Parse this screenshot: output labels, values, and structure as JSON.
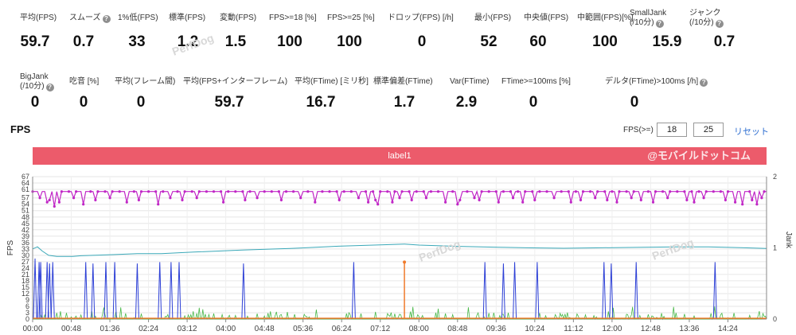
{
  "stats_row1": [
    {
      "label": "平均(FPS)",
      "value": "59.7",
      "help": false
    },
    {
      "label": "スムーズ",
      "value": "0.7",
      "help": true
    },
    {
      "label": "1%低(FPS)",
      "value": "33",
      "help": false
    },
    {
      "label": "標準(FPS)",
      "value": "1.2",
      "help": false
    },
    {
      "label": "変動(FPS)",
      "value": "1.5",
      "help": false
    },
    {
      "label": "FPS>=18 [%]",
      "value": "100",
      "help": false
    },
    {
      "label": "FPS>=25 [%]",
      "value": "100",
      "help": false
    },
    {
      "label": "ドロップ(FPS) [/h]",
      "value": "0",
      "help": false
    },
    {
      "label": "最小(FPS)",
      "value": "52",
      "help": false
    },
    {
      "label": "中央値(FPS)",
      "value": "60",
      "help": false
    },
    {
      "label": "中範囲(FPS)[%]",
      "value": "100",
      "help": false
    },
    {
      "label": "SmallJank",
      "label2": "(/10分)",
      "value": "15.9",
      "help": true
    },
    {
      "label": "ジャンク",
      "label2": "(/10分)",
      "value": "0.7",
      "help": true
    }
  ],
  "stats_row2": [
    {
      "label": "BigJank",
      "label2": "(/10分)",
      "value": "0",
      "help": true
    },
    {
      "label": "吃音 [%]",
      "value": "0",
      "help": false
    },
    {
      "label": "平均(フレーム間)",
      "value": "0",
      "help": false
    },
    {
      "label": "平均(FPS+インターフレーム)",
      "value": "59.7",
      "help": false
    },
    {
      "label": "平均(FTime) [ミリ秒]",
      "value": "16.7",
      "help": false
    },
    {
      "label": "標準偏差(FTime)",
      "value": "1.7",
      "help": false
    },
    {
      "label": "Var(FTime)",
      "value": "2.9",
      "help": false
    },
    {
      "label": "FTime>=100ms [%]",
      "value": "0",
      "help": false
    },
    {
      "label": "デルタ(FTime)>100ms [/h]",
      "value": "0",
      "help": true
    }
  ],
  "help_glyph": "?",
  "fps_section": {
    "title": "FPS",
    "threshold_label": "FPS(>=)",
    "threshold_1": "18",
    "threshold_2": "25",
    "reset_label": "リセット"
  },
  "label_bar": {
    "text": "label1",
    "brand": "@モバイルドットコム"
  },
  "watermark": "PerfDog",
  "chart_data": {
    "type": "line",
    "xlabel": "",
    "ylabel": "FPS",
    "y2label": "Jank",
    "ylim": [
      0,
      67
    ],
    "y2lim": [
      0,
      2
    ],
    "y_ticks": [
      0,
      3,
      6,
      9,
      12,
      15,
      18,
      21,
      24,
      27,
      30,
      33,
      36,
      39,
      42,
      45,
      48,
      51,
      54,
      57,
      61,
      64,
      67
    ],
    "y2_ticks": [
      0,
      1,
      2
    ],
    "x_ticks": [
      "00:00",
      "00:48",
      "01:36",
      "02:24",
      "03:12",
      "04:00",
      "04:48",
      "05:36",
      "06:24",
      "07:12",
      "08:00",
      "08:48",
      "09:36",
      "10:24",
      "11:12",
      "12:00",
      "12:48",
      "13:36",
      "14:24"
    ],
    "x_range_seconds": [
      0,
      912
    ],
    "series": [
      {
        "name": "",
        "color": "#c026c6",
        "kind": "fps",
        "baseline": 60,
        "dips": [
          [
            9,
            57
          ],
          [
            18,
            55
          ],
          [
            21,
            56
          ],
          [
            26,
            53
          ],
          [
            33,
            55
          ],
          [
            50,
            57
          ],
          [
            63,
            54
          ],
          [
            79,
            56
          ],
          [
            95,
            57
          ],
          [
            118,
            55
          ],
          [
            133,
            56
          ],
          [
            155,
            54
          ],
          [
            170,
            57
          ],
          [
            186,
            56
          ],
          [
            205,
            57
          ],
          [
            238,
            55
          ],
          [
            264,
            56
          ],
          [
            280,
            57
          ],
          [
            309,
            56
          ],
          [
            333,
            57
          ],
          [
            352,
            55
          ],
          [
            381,
            56
          ],
          [
            405,
            57
          ],
          [
            418,
            55
          ],
          [
            426,
            56
          ],
          [
            430,
            54
          ],
          [
            446,
            55
          ],
          [
            455,
            57
          ],
          [
            470,
            56
          ],
          [
            490,
            57
          ],
          [
            512,
            55
          ],
          [
            527,
            54
          ],
          [
            531,
            56
          ],
          [
            548,
            57
          ],
          [
            556,
            56
          ],
          [
            578,
            55
          ],
          [
            596,
            57
          ],
          [
            608,
            55
          ],
          [
            625,
            56
          ],
          [
            648,
            57
          ],
          [
            670,
            55
          ],
          [
            681,
            56
          ],
          [
            700,
            57
          ],
          [
            713,
            56
          ],
          [
            726,
            55
          ],
          [
            745,
            57
          ],
          [
            755,
            56
          ],
          [
            770,
            55
          ],
          [
            790,
            57
          ],
          [
            813,
            56
          ],
          [
            822,
            55
          ],
          [
            835,
            57
          ],
          [
            860,
            56
          ],
          [
            873,
            55
          ],
          [
            882,
            54
          ],
          [
            895,
            56
          ],
          [
            899,
            54
          ],
          [
            905,
            57
          ]
        ]
      },
      {
        "name": "",
        "color": "#3aa8b8",
        "kind": "trend",
        "points": [
          [
            0,
            33
          ],
          [
            6,
            34
          ],
          [
            12,
            32
          ],
          [
            20,
            30
          ],
          [
            30,
            29.5
          ],
          [
            50,
            29.5
          ],
          [
            60,
            29.8
          ],
          [
            75,
            30
          ],
          [
            100,
            30.3
          ],
          [
            130,
            30.8
          ],
          [
            160,
            30.8
          ],
          [
            200,
            31.5
          ],
          [
            260,
            32.5
          ],
          [
            320,
            33.2
          ],
          [
            380,
            34.3
          ],
          [
            440,
            35
          ],
          [
            462,
            35.3
          ],
          [
            480,
            34.8
          ],
          [
            530,
            34.2
          ],
          [
            580,
            33.8
          ],
          [
            620,
            33.5
          ],
          [
            660,
            33.3
          ],
          [
            700,
            33.5
          ],
          [
            760,
            33.8
          ],
          [
            800,
            34
          ],
          [
            840,
            34
          ],
          [
            880,
            33.6
          ],
          [
            912,
            33.2
          ]
        ]
      },
      {
        "name": "",
        "color": "#2c3fd6",
        "kind": "jank_spikes",
        "spikes": [
          [
            3,
            0.85
          ],
          [
            8,
            0.8
          ],
          [
            10,
            0.8
          ],
          [
            18,
            0.8
          ],
          [
            21,
            0.78
          ],
          [
            25,
            0.8
          ],
          [
            66,
            0.8
          ],
          [
            75,
            0.78
          ],
          [
            91,
            0.8
          ],
          [
            102,
            0.8
          ],
          [
            130,
            0.78
          ],
          [
            158,
            0.8
          ],
          [
            172,
            0.8
          ],
          [
            182,
            0.8
          ],
          [
            262,
            0.78
          ],
          [
            399,
            0.8
          ],
          [
            562,
            0.8
          ],
          [
            585,
            0.78
          ],
          [
            599,
            0.8
          ],
          [
            627,
            0.8
          ],
          [
            710,
            0.8
          ],
          [
            719,
            0.78
          ],
          [
            750,
            0.8
          ],
          [
            848,
            0.8
          ]
        ]
      },
      {
        "name": "",
        "color": "#f07a2a",
        "kind": "big_spike",
        "spikes": [
          [
            462,
            0.8
          ]
        ]
      },
      {
        "name": "",
        "color": "#48b848",
        "kind": "noise"
      }
    ]
  }
}
